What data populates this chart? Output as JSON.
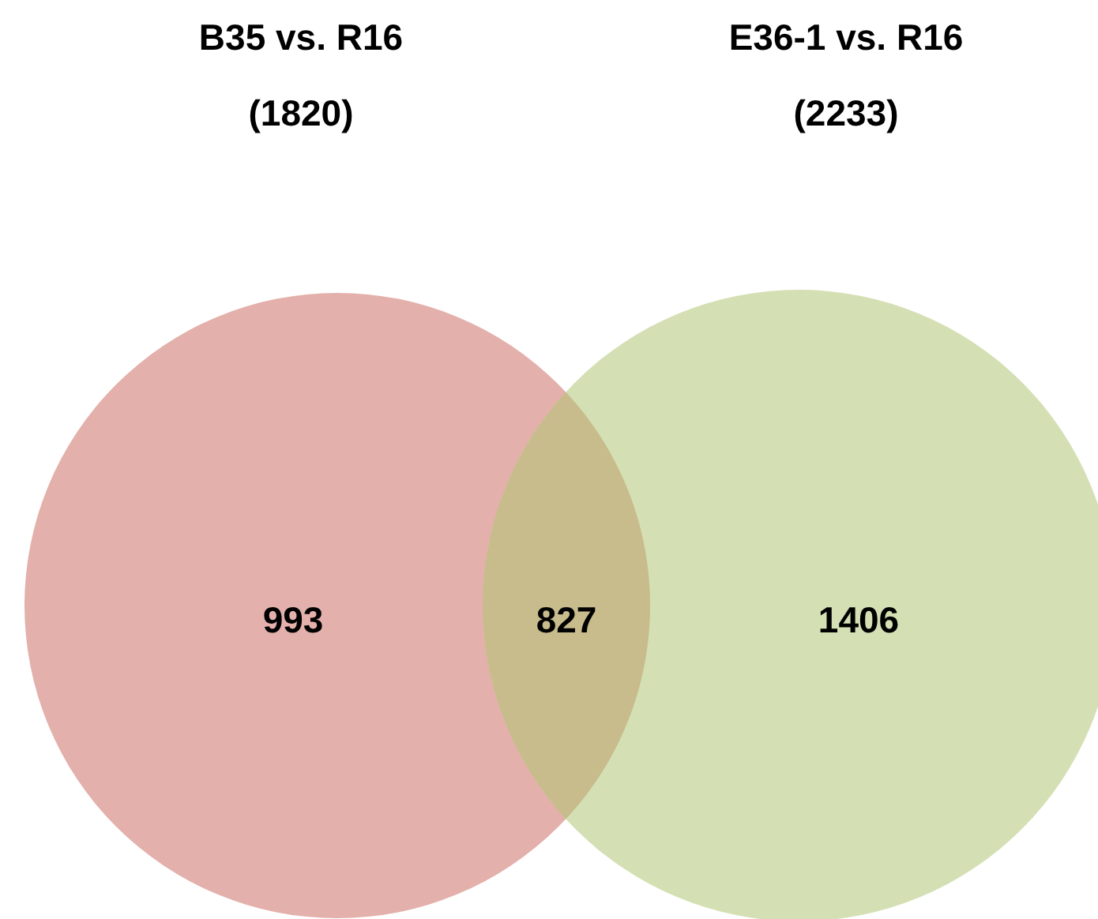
{
  "chart_data": {
    "type": "other",
    "categories": [
      null,
      null,
      null
    ],
    "values": [
      993,
      827,
      1406
    ],
    "data_labels": true,
    "colors": [
      "#e3b0ab",
      "#c8bb8c",
      "#d4e0b4"
    ],
    "annotations": [
      "B35 vs. R16\n(1820)",
      "E36-1 vs. R16\n(2233)"
    ]
  }
}
